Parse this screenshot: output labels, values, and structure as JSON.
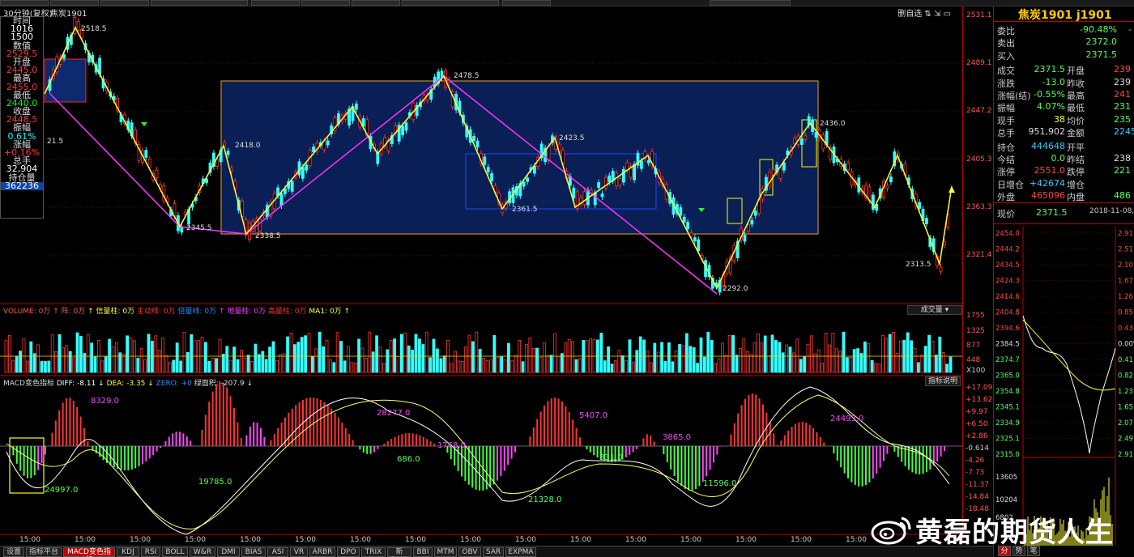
{
  "title_bar": {
    "period": "30分钟(复权)",
    "contract": "焦炭1901",
    "tools": "删自选 ⇅ ⇲ ▭"
  },
  "left_panel": [
    {
      "label": "时间",
      "value": "1016"
    },
    {
      "label": "",
      "value": "1500"
    },
    {
      "label": "数值",
      "value": "2529.5"
    },
    {
      "label": "开盘",
      "value": "2445.0"
    },
    {
      "label": "最高",
      "value": "2455.0"
    },
    {
      "label": "最低",
      "value": "2440.0"
    },
    {
      "label": "收盘",
      "value": "2448.5"
    },
    {
      "label": "振幅",
      "value": "0.61%"
    },
    {
      "label": "涨幅",
      "value": "+0.16%"
    },
    {
      "label": "总手",
      "value": "32,904"
    },
    {
      "label": "持仓量",
      "value": "362236"
    }
  ],
  "price_axis": [
    "2531.1",
    "2489.1",
    "2447.2",
    "2405.3",
    "2363.3",
    "2321.4"
  ],
  "volume_axis": [
    "1755",
    "1325",
    "877",
    "448",
    "X100"
  ],
  "macd_axis": [
    "+17.09",
    "+13.62",
    "+9.97",
    "+6.50",
    "+2.86",
    "-0.614",
    "-4.26",
    "-7.73",
    "-11.37",
    "-14.84",
    "-18.48"
  ],
  "annotations": {
    "p1": "2518.5",
    "p2": "2345.5",
    "p3": "2418.0",
    "p4": "2338.5",
    "p5": "2478.5",
    "p6": "2423.5",
    "p7": "2361.5",
    "p8": "2292.0",
    "p9": "2436.0",
    "p10": "2313.5",
    "side": "21.5"
  },
  "volume_header": {
    "title": "VOLUME: 0万",
    "items": [
      "↑ 阵: 0万",
      "↑ 信量柱: 0万",
      "主动线: 0万",
      "倍量线: 0万",
      "↑ 地量柱: 0万",
      "高量柱: 0万",
      "MA1: 0万 ↑"
    ],
    "button": "成交量 ▾"
  },
  "macd_header": {
    "title": "MACD变色指标",
    "diff": "DIFF: -8.11 ↓",
    "dea": "DEA: -3.35 ↓",
    "zero": "ZERO: +0",
    "area": "绿面积: -207.9 ↓",
    "button": "指标说明"
  },
  "macd_labels": {
    "m1": "8329.0",
    "m2": "24997.0",
    "m3": "19785.0",
    "m4": "28277.0",
    "m5": "686.0",
    "m6": "1768.0",
    "m7": "5407.0",
    "m8": "21328.0",
    "m9": "331.0",
    "m10": "3865.0",
    "m11": "11596.0",
    "m12": "24493.0"
  },
  "time_labels": [
    "15:00",
    "15:00",
    "15:00",
    "15:00",
    "15:00",
    "15:00",
    "15:00",
    "15:00",
    "15:00",
    "15:00",
    "15:00",
    "15:00",
    "15:00",
    "15:00",
    "15:00",
    "15:00"
  ],
  "tabs": [
    "设置",
    "指标平台",
    "MACD变色指标",
    "KDJ",
    "RSI",
    "BOLL",
    "W&R",
    "DMI",
    "BIAS",
    "ASI",
    "VR",
    "ARBR",
    "DPO",
    "TRIX",
    "新DMA",
    "BBI",
    "MTM",
    "OBV",
    "SAR",
    "EXPMA"
  ],
  "quote": {
    "title": "焦炭1901 j1901",
    "rows": [
      {
        "l": "委比",
        "v": "-90.48%",
        "c": "green",
        "r": "-"
      },
      {
        "l": "卖出",
        "v": "2372.0",
        "c": "green"
      },
      {
        "l": "买入",
        "v": "2371.5",
        "c": "green"
      },
      {
        "l": "成交",
        "v": "2371.5",
        "c": "green",
        "l2": "开盘",
        "v2": "239",
        "c2": "red"
      },
      {
        "l": "涨跌",
        "v": "-13.0",
        "c": "green",
        "l2": "昨收",
        "v2": "239",
        "c2": "white"
      },
      {
        "l": "涨幅(结)",
        "v": "-0.55%",
        "c": "green",
        "l2": "最高",
        "v2": "241",
        "c2": "red"
      },
      {
        "l": "振幅",
        "v": "4.07%",
        "c": "green",
        "l2": "最低",
        "v2": "231",
        "c2": "green"
      },
      {
        "l": "现手",
        "v": "38",
        "c": "yellow",
        "l2": "均价",
        "v2": "235",
        "c2": "green"
      },
      {
        "l": "总手",
        "v": "951,902",
        "c": "white",
        "l2": "金额",
        "v2": "2245",
        "c2": "cyan"
      },
      {
        "l": "持仓",
        "v": "444648",
        "c": "cyan",
        "l2": "开平",
        "v2": "",
        "c2": "white"
      },
      {
        "l": "今结",
        "v": "0.0",
        "c": "green",
        "l2": "昨结",
        "v2": "238",
        "c2": "white"
      },
      {
        "l": "涨停",
        "v": "2551.0",
        "c": "red",
        "l2": "跌停",
        "v2": "221",
        "c2": "green"
      },
      {
        "l": "日增仓",
        "v": "+42674",
        "c": "cyan",
        "l2": "增仓",
        "v2": "",
        "c2": "white"
      },
      {
        "l": "外盘",
        "v": "465096",
        "c": "red",
        "l2": "内盘",
        "v2": "486",
        "c2": "green"
      }
    ],
    "current_label": "现价",
    "current_value": "2371.5",
    "current_date": "2018-11-08,",
    "mini_axis_left": [
      "2454.0",
      "2444.2",
      "2434.5",
      "2424.3",
      "2414.6",
      "2404.8",
      "2394.6",
      "2384.5",
      "2374.7",
      "2365.0",
      "2354.8",
      "2345.1",
      "2334.9",
      "2325.1",
      "2315.0",
      "13605",
      "10204",
      "6802"
    ],
    "mini_axis_right": [
      "2.91",
      "2.51",
      "2.10",
      "1.67",
      "1.26",
      "0.85",
      "0.43",
      "0.00%",
      "0.41",
      "0.82",
      "1.23",
      "1.65",
      "2.07",
      "2.49",
      "2.91"
    ],
    "tabs": [
      "分",
      "势",
      "笔"
    ]
  },
  "watermark": "黄磊的期货人生"
}
